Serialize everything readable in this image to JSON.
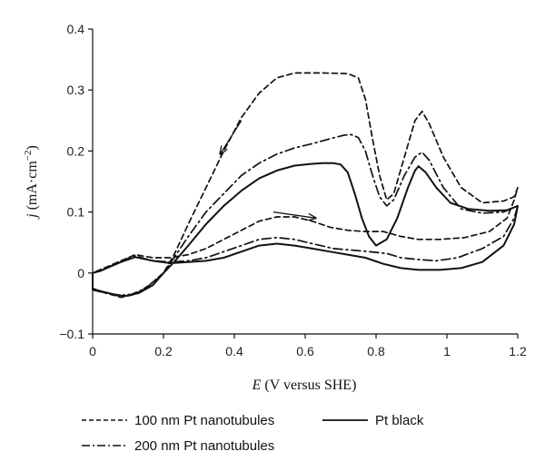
{
  "chart_data": {
    "type": "line",
    "xlabel_italic": "E",
    "xlabel_rest": " (V versus SHE)",
    "ylabel_italic": "j",
    "ylabel_rest": " (mA·cm",
    "ylabel_sup": "−2",
    "ylabel_close": ")",
    "xlim": [
      0,
      1.2
    ],
    "ylim": [
      -0.1,
      0.4
    ],
    "x_ticks": [
      {
        "value": 0,
        "label": "0"
      },
      {
        "value": 0.2,
        "label": "0.2"
      },
      {
        "value": 0.4,
        "label": "0.4"
      },
      {
        "value": 0.6,
        "label": "0.6"
      },
      {
        "value": 0.8,
        "label": "0.8"
      },
      {
        "value": 1.0,
        "label": "1"
      },
      {
        "value": 1.2,
        "label": "1.2"
      }
    ],
    "y_ticks": [
      {
        "value": -0.1,
        "label": "−0.1"
      },
      {
        "value": 0,
        "label": "0"
      },
      {
        "value": 0.1,
        "label": "0.1"
      },
      {
        "value": 0.2,
        "label": "0.2"
      },
      {
        "value": 0.3,
        "label": "0.3"
      },
      {
        "value": 0.4,
        "label": "0.4"
      }
    ],
    "grid": false,
    "legend_position": "bottom",
    "series": [
      {
        "name": "100 nm Pt nanotubules",
        "style": "dashed",
        "points": [
          [
            0,
            -0.025
          ],
          [
            0.02,
            -0.03
          ],
          [
            0.05,
            -0.035
          ],
          [
            0.08,
            -0.04
          ],
          [
            0.12,
            -0.035
          ],
          [
            0.16,
            -0.02
          ],
          [
            0.2,
            0.0
          ],
          [
            0.23,
            0.03
          ],
          [
            0.27,
            0.08
          ],
          [
            0.32,
            0.14
          ],
          [
            0.37,
            0.2
          ],
          [
            0.42,
            0.255
          ],
          [
            0.47,
            0.295
          ],
          [
            0.52,
            0.32
          ],
          [
            0.57,
            0.328
          ],
          [
            0.65,
            0.328
          ],
          [
            0.72,
            0.327
          ],
          [
            0.75,
            0.32
          ],
          [
            0.77,
            0.285
          ],
          [
            0.79,
            0.22
          ],
          [
            0.81,
            0.16
          ],
          [
            0.83,
            0.12
          ],
          [
            0.85,
            0.13
          ],
          [
            0.88,
            0.19
          ],
          [
            0.91,
            0.25
          ],
          [
            0.93,
            0.265
          ],
          [
            0.95,
            0.245
          ],
          [
            0.99,
            0.19
          ],
          [
            1.04,
            0.14
          ],
          [
            1.1,
            0.115
          ],
          [
            1.16,
            0.118
          ],
          [
            1.19,
            0.125
          ],
          [
            1.2,
            0.14
          ],
          [
            1.19,
            0.12
          ],
          [
            1.17,
            0.09
          ],
          [
            1.12,
            0.068
          ],
          [
            1.05,
            0.058
          ],
          [
            0.98,
            0.055
          ],
          [
            0.92,
            0.055
          ],
          [
            0.87,
            0.06
          ],
          [
            0.82,
            0.068
          ],
          [
            0.77,
            0.068
          ],
          [
            0.72,
            0.07
          ],
          [
            0.67,
            0.075
          ],
          [
            0.62,
            0.085
          ],
          [
            0.57,
            0.092
          ],
          [
            0.52,
            0.092
          ],
          [
            0.47,
            0.085
          ],
          [
            0.42,
            0.07
          ],
          [
            0.37,
            0.055
          ],
          [
            0.32,
            0.04
          ],
          [
            0.27,
            0.03
          ],
          [
            0.22,
            0.025
          ],
          [
            0.17,
            0.025
          ],
          [
            0.12,
            0.03
          ],
          [
            0.08,
            0.02
          ],
          [
            0.04,
            0.01
          ],
          [
            0.02,
            0.005
          ],
          [
            0,
            0.0
          ]
        ]
      },
      {
        "name": "200 nm Pt nanotubules",
        "style": "dashdot",
        "points": [
          [
            0,
            -0.028
          ],
          [
            0.03,
            -0.032
          ],
          [
            0.07,
            -0.037
          ],
          [
            0.11,
            -0.035
          ],
          [
            0.15,
            -0.025
          ],
          [
            0.2,
            0.0
          ],
          [
            0.23,
            0.025
          ],
          [
            0.27,
            0.06
          ],
          [
            0.32,
            0.1
          ],
          [
            0.37,
            0.13
          ],
          [
            0.42,
            0.16
          ],
          [
            0.47,
            0.18
          ],
          [
            0.52,
            0.195
          ],
          [
            0.57,
            0.205
          ],
          [
            0.62,
            0.212
          ],
          [
            0.67,
            0.22
          ],
          [
            0.71,
            0.226
          ],
          [
            0.73,
            0.227
          ],
          [
            0.75,
            0.222
          ],
          [
            0.77,
            0.2
          ],
          [
            0.79,
            0.16
          ],
          [
            0.81,
            0.125
          ],
          [
            0.83,
            0.11
          ],
          [
            0.85,
            0.12
          ],
          [
            0.88,
            0.16
          ],
          [
            0.91,
            0.19
          ],
          [
            0.93,
            0.198
          ],
          [
            0.95,
            0.185
          ],
          [
            0.99,
            0.14
          ],
          [
            1.04,
            0.105
          ],
          [
            1.1,
            0.098
          ],
          [
            1.16,
            0.1
          ],
          [
            1.2,
            0.11
          ],
          [
            1.19,
            0.09
          ],
          [
            1.16,
            0.06
          ],
          [
            1.1,
            0.04
          ],
          [
            1.03,
            0.025
          ],
          [
            0.97,
            0.02
          ],
          [
            0.92,
            0.022
          ],
          [
            0.87,
            0.025
          ],
          [
            0.83,
            0.032
          ],
          [
            0.78,
            0.035
          ],
          [
            0.74,
            0.037
          ],
          [
            0.68,
            0.04
          ],
          [
            0.62,
            0.048
          ],
          [
            0.57,
            0.055
          ],
          [
            0.52,
            0.058
          ],
          [
            0.47,
            0.055
          ],
          [
            0.42,
            0.045
          ],
          [
            0.37,
            0.035
          ],
          [
            0.32,
            0.025
          ],
          [
            0.27,
            0.02
          ],
          [
            0.22,
            0.018
          ],
          [
            0.17,
            0.02
          ],
          [
            0.12,
            0.028
          ],
          [
            0.08,
            0.02
          ],
          [
            0.04,
            0.008
          ],
          [
            0.02,
            0.003
          ],
          [
            0,
            0.0
          ]
        ]
      },
      {
        "name": "Pt black",
        "style": "solid",
        "points": [
          [
            0,
            -0.026
          ],
          [
            0.03,
            -0.031
          ],
          [
            0.06,
            -0.035
          ],
          [
            0.09,
            -0.038
          ],
          [
            0.13,
            -0.033
          ],
          [
            0.17,
            -0.02
          ],
          [
            0.2,
            0.0
          ],
          [
            0.23,
            0.018
          ],
          [
            0.27,
            0.045
          ],
          [
            0.32,
            0.08
          ],
          [
            0.37,
            0.11
          ],
          [
            0.42,
            0.135
          ],
          [
            0.47,
            0.155
          ],
          [
            0.52,
            0.168
          ],
          [
            0.57,
            0.176
          ],
          [
            0.62,
            0.179
          ],
          [
            0.65,
            0.18
          ],
          [
            0.68,
            0.18
          ],
          [
            0.7,
            0.178
          ],
          [
            0.72,
            0.165
          ],
          [
            0.74,
            0.13
          ],
          [
            0.76,
            0.09
          ],
          [
            0.78,
            0.06
          ],
          [
            0.8,
            0.045
          ],
          [
            0.83,
            0.055
          ],
          [
            0.86,
            0.09
          ],
          [
            0.89,
            0.14
          ],
          [
            0.91,
            0.168
          ],
          [
            0.92,
            0.175
          ],
          [
            0.94,
            0.165
          ],
          [
            0.97,
            0.14
          ],
          [
            1.01,
            0.115
          ],
          [
            1.06,
            0.105
          ],
          [
            1.12,
            0.102
          ],
          [
            1.17,
            0.103
          ],
          [
            1.2,
            0.11
          ],
          [
            1.19,
            0.08
          ],
          [
            1.16,
            0.045
          ],
          [
            1.1,
            0.018
          ],
          [
            1.04,
            0.008
          ],
          [
            0.98,
            0.005
          ],
          [
            0.92,
            0.005
          ],
          [
            0.87,
            0.008
          ],
          [
            0.82,
            0.015
          ],
          [
            0.77,
            0.025
          ],
          [
            0.72,
            0.03
          ],
          [
            0.67,
            0.035
          ],
          [
            0.62,
            0.04
          ],
          [
            0.57,
            0.045
          ],
          [
            0.52,
            0.048
          ],
          [
            0.47,
            0.045
          ],
          [
            0.42,
            0.035
          ],
          [
            0.37,
            0.025
          ],
          [
            0.32,
            0.02
          ],
          [
            0.27,
            0.018
          ],
          [
            0.22,
            0.016
          ],
          [
            0.17,
            0.02
          ],
          [
            0.12,
            0.026
          ],
          [
            0.08,
            0.018
          ],
          [
            0.04,
            0.008
          ],
          [
            0.02,
            0.003
          ],
          [
            0,
            0.0
          ]
        ]
      }
    ],
    "annotations": [
      {
        "type": "arrow",
        "from": [
          0.42,
          0.25
        ],
        "to": [
          0.36,
          0.195
        ]
      },
      {
        "type": "arrow",
        "from": [
          0.51,
          0.1
        ],
        "to": [
          0.63,
          0.09
        ]
      }
    ]
  },
  "legend": [
    {
      "label": "100 nm Pt nanotubules",
      "style": "dashed"
    },
    {
      "label": "Pt black",
      "style": "solid"
    },
    {
      "label": "200 nm Pt nanotubules",
      "style": "dashdot"
    }
  ]
}
